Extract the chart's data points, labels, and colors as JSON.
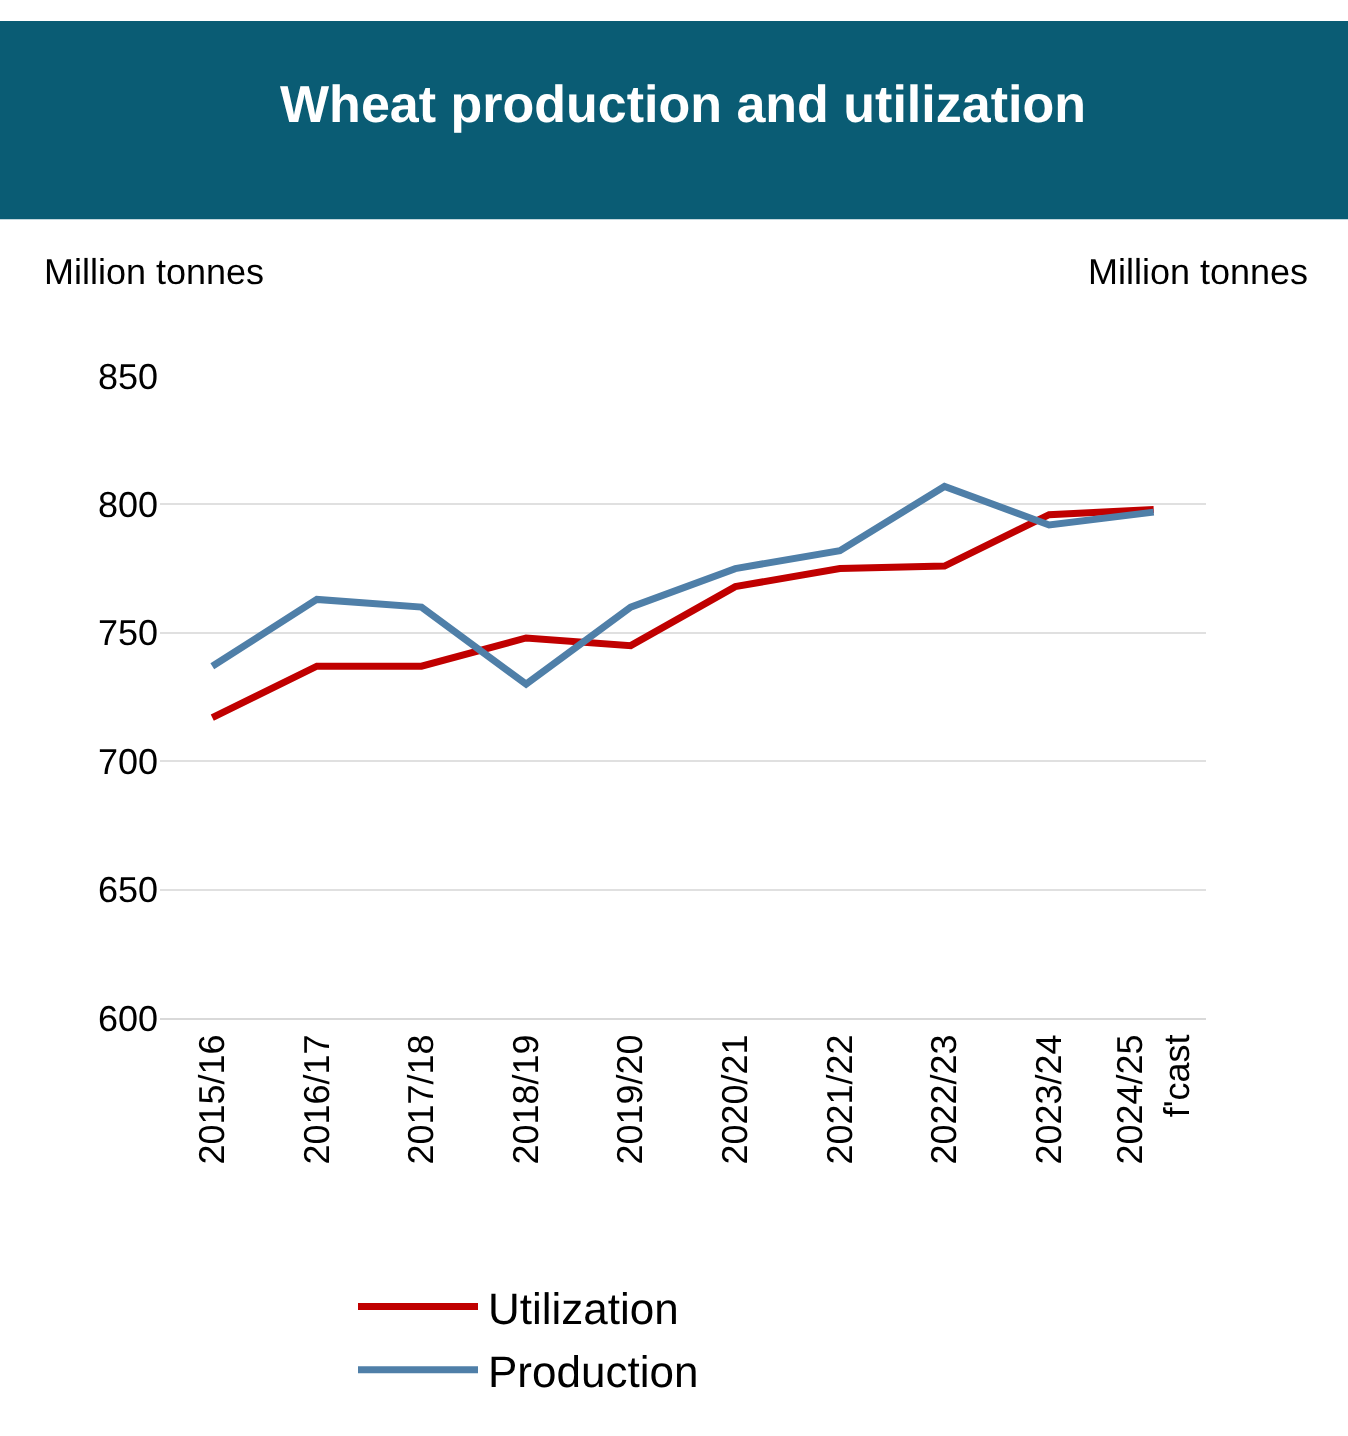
{
  "chart_data": {
    "type": "line",
    "title": "Wheat production and utilization",
    "ylabel": "Million tonnes",
    "y2label": "Million tonnes",
    "categories": [
      "2015/16",
      "2016/17",
      "2017/18",
      "2018/19",
      "2019/20",
      "2020/21",
      "2021/22",
      "2022/23",
      "2023/24",
      "2024/25\nf'cast"
    ],
    "series": [
      {
        "name": "Utilization",
        "color": "#c00000",
        "values": [
          717,
          737,
          737,
          748,
          745,
          768,
          775,
          776,
          796,
          798
        ]
      },
      {
        "name": "Production",
        "color": "#4f7fa8",
        "values": [
          737,
          763,
          760,
          730,
          760,
          775,
          782,
          807,
          792,
          797
        ]
      }
    ],
    "ylim": [
      600,
      850
    ],
    "yticks": [
      600,
      650,
      700,
      750,
      800,
      850
    ],
    "grid": "y",
    "legend": "bottom",
    "marker": "none",
    "line_style": "solid"
  }
}
